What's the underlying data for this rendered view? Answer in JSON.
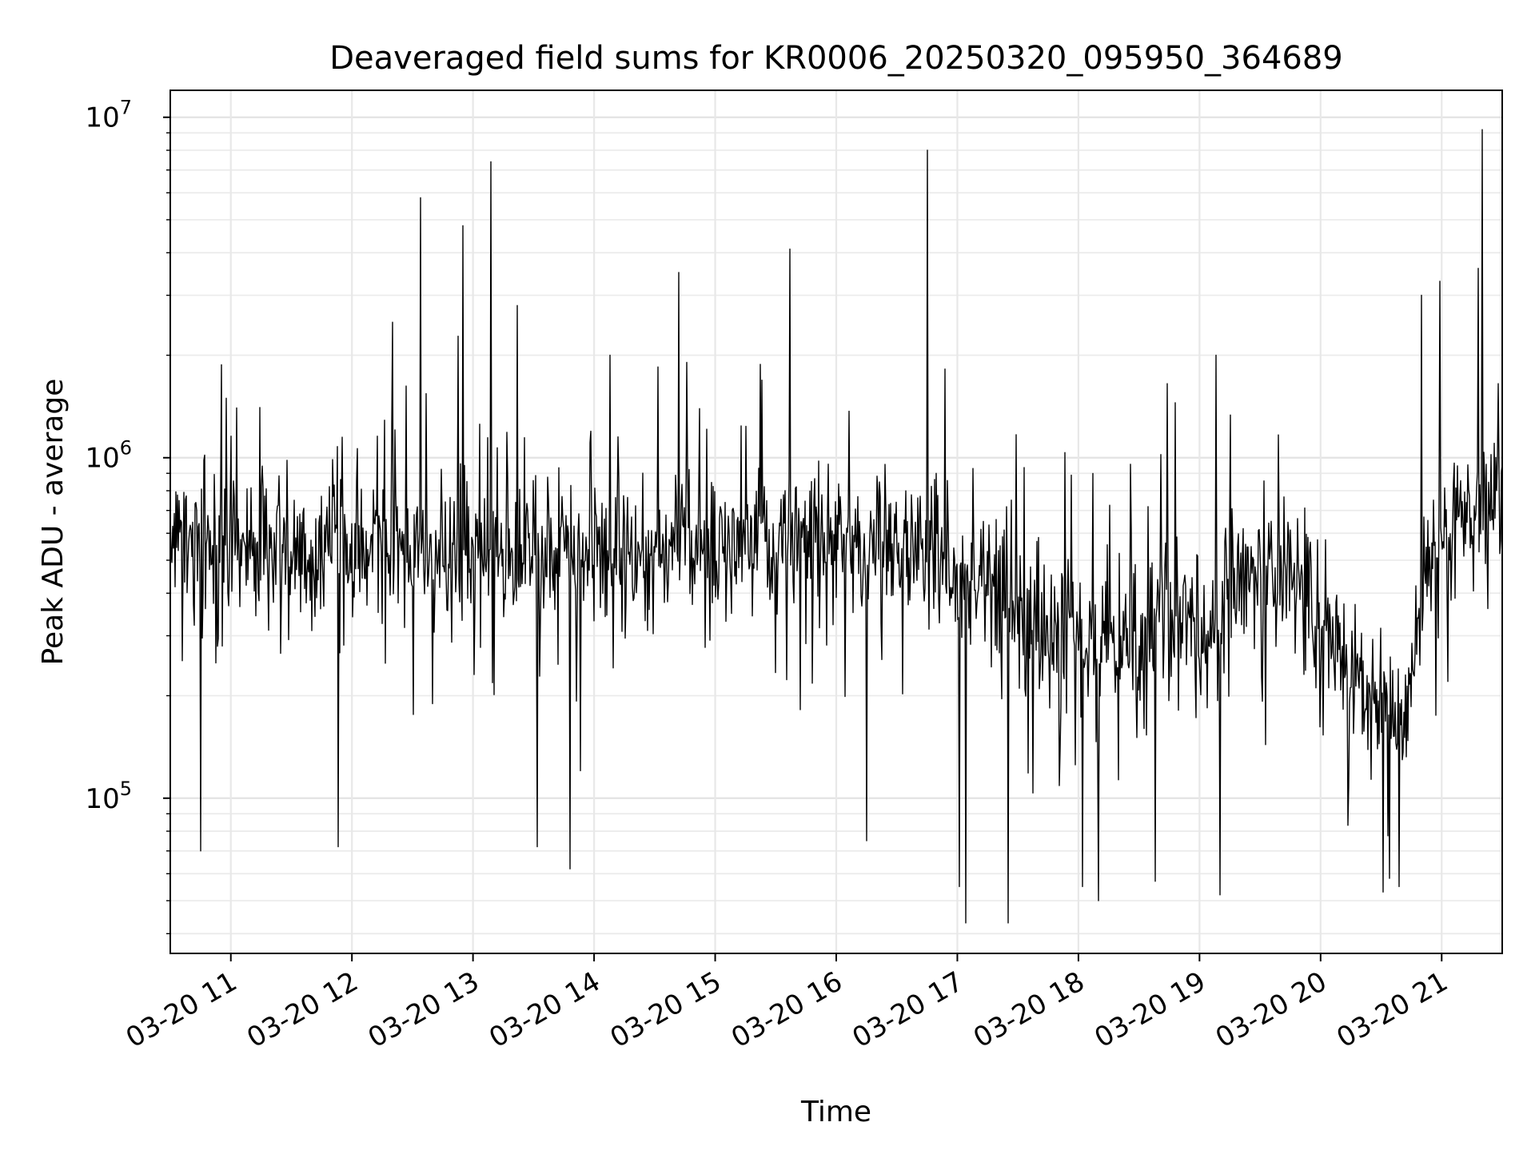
{
  "chart_data": {
    "type": "line",
    "title": "Deaveraged field sums for KR0006_20250320_095950_364689",
    "xlabel": "Time",
    "ylabel": "Peak ADU - average",
    "xlim": [
      "2025-03-20 10:30",
      "2025-03-20 21:30"
    ],
    "ylim": [
      35000,
      12000000
    ],
    "y_scale": "log",
    "grid": true,
    "x_ticks": [
      "03-20 11",
      "03-20 12",
      "03-20 13",
      "03-20 14",
      "03-20 15",
      "03-20 16",
      "03-20 17",
      "03-20 18",
      "03-20 19",
      "03-20 20",
      "03-20 21"
    ],
    "y_ticks": [
      {
        "value": 100000,
        "base": "10",
        "exp": "5"
      },
      {
        "value": 1000000,
        "base": "10",
        "exp": "6"
      },
      {
        "value": 10000000,
        "base": "10",
        "exp": "7"
      }
    ],
    "series_color": "#000000",
    "baseline_profile": [
      {
        "t": "10:30",
        "y": 550000
      },
      {
        "t": "13:30",
        "y": 520000
      },
      {
        "t": "16:00",
        "y": 560000
      },
      {
        "t": "16:45",
        "y": 520000
      },
      {
        "t": "17:15",
        "y": 400000
      },
      {
        "t": "18:00",
        "y": 300000
      },
      {
        "t": "18:30",
        "y": 260000
      },
      {
        "t": "18:45",
        "y": 400000
      },
      {
        "t": "19:00",
        "y": 280000
      },
      {
        "t": "19:30",
        "y": 450000
      },
      {
        "t": "20:00",
        "y": 350000
      },
      {
        "t": "20:30",
        "y": 180000
      },
      {
        "t": "20:40",
        "y": 150000
      },
      {
        "t": "20:50",
        "y": 400000
      },
      {
        "t": "21:00",
        "y": 650000
      },
      {
        "t": "21:30",
        "y": 700000
      }
    ],
    "peaks": [
      {
        "t": "11:03",
        "y": 1400000
      },
      {
        "t": "12:20",
        "y": 2500000
      },
      {
        "t": "12:34",
        "y": 5800000
      },
      {
        "t": "12:55",
        "y": 4800000
      },
      {
        "t": "13:09",
        "y": 7400000
      },
      {
        "t": "13:22",
        "y": 2800000
      },
      {
        "t": "14:08",
        "y": 2000000
      },
      {
        "t": "14:42",
        "y": 3500000
      },
      {
        "t": "15:37",
        "y": 4100000
      },
      {
        "t": "16:45",
        "y": 8000000
      },
      {
        "t": "18:44",
        "y": 1650000
      },
      {
        "t": "18:48",
        "y": 1450000
      },
      {
        "t": "19:08",
        "y": 2000000
      },
      {
        "t": "20:50",
        "y": 3000000
      },
      {
        "t": "20:59",
        "y": 3300000
      },
      {
        "t": "21:18",
        "y": 3600000
      },
      {
        "t": "21:20",
        "y": 9200000
      },
      {
        "t": "21:28",
        "y": 1650000
      }
    ],
    "troughs": [
      {
        "t": "10:45",
        "y": 70000
      },
      {
        "t": "11:53",
        "y": 72000
      },
      {
        "t": "13:32",
        "y": 72000
      },
      {
        "t": "13:48",
        "y": 62000
      },
      {
        "t": "16:15",
        "y": 75000
      },
      {
        "t": "17:01",
        "y": 55000
      },
      {
        "t": "17:04",
        "y": 43000
      },
      {
        "t": "17:25",
        "y": 43000
      },
      {
        "t": "18:02",
        "y": 55000
      },
      {
        "t": "18:10",
        "y": 50000
      },
      {
        "t": "18:38",
        "y": 57000
      },
      {
        "t": "19:10",
        "y": 52000
      },
      {
        "t": "20:31",
        "y": 53000
      },
      {
        "t": "20:39",
        "y": 55000
      }
    ]
  }
}
